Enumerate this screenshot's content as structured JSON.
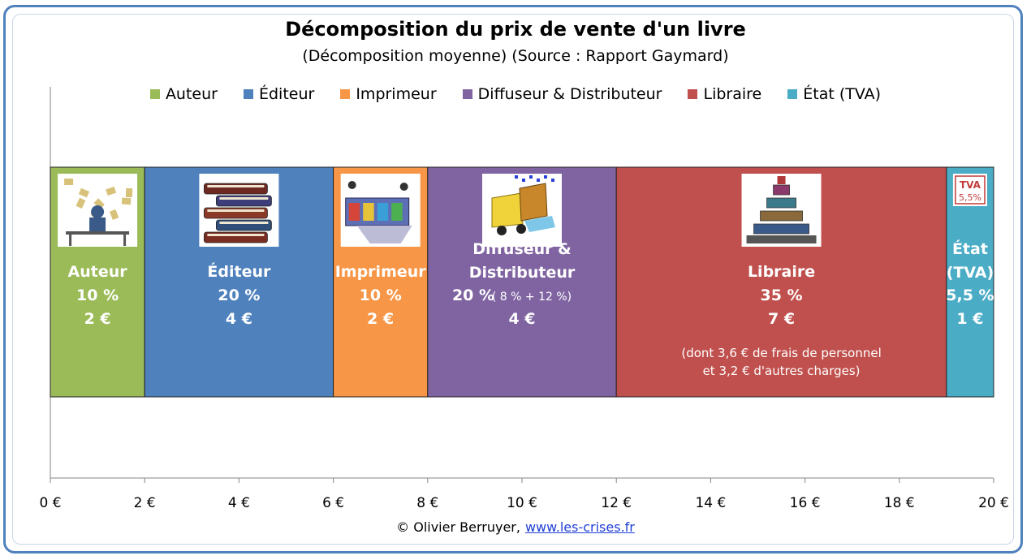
{
  "chart_data": {
    "type": "bar",
    "orientation": "horizontal-stacked",
    "title": "Décomposition du prix de vente d'un livre",
    "subtitle": "(Décomposition moyenne) (Source : Rapport Gaymard)",
    "legend_position": "top",
    "xlim": [
      0,
      20
    ],
    "x_ticks": [
      "0 €",
      "2 €",
      "4 €",
      "6 €",
      "8 €",
      "10 €",
      "12 €",
      "14 €",
      "16 €",
      "18 €",
      "20 €"
    ],
    "x_tick_values": [
      0,
      2,
      4,
      6,
      8,
      10,
      12,
      14,
      16,
      18,
      20
    ],
    "grid": "vertical gridlines at each tick",
    "series": [
      {
        "name": "Auteur",
        "value": 2,
        "color": "#9bbb59",
        "lines": [
          "Auteur"
        ],
        "percent": "10 %",
        "euro": "2 €",
        "icon": "writer-at-desk-icon"
      },
      {
        "name": "Éditeur",
        "value": 4,
        "color": "#4f81bd",
        "lines": [
          "Éditeur"
        ],
        "percent": "20 %",
        "euro": "4 €",
        "icon": "stack-of-books-icon"
      },
      {
        "name": "Imprimeur",
        "value": 2,
        "color": "#f79646",
        "lines": [
          "Imprimeur"
        ],
        "percent": "10 %",
        "euro": "2 €",
        "icon": "printing-press-icon"
      },
      {
        "name": "Diffuseur & Distributeur",
        "value": 4,
        "color": "#8064a2",
        "lines": [
          "Diffuseur &",
          "Distributeur"
        ],
        "percent": "20 %",
        "percent_detail": "( 8 % + 12 %)",
        "euro": "4 €",
        "icon": "delivery-truck-icon"
      },
      {
        "name": "Libraire",
        "value": 7,
        "color": "#c0504d",
        "lines": [
          "Libraire"
        ],
        "percent": "35 %",
        "euro": "7 €",
        "note": [
          "(dont  3,6 € de frais de personnel",
          "et 3,2 € d'autres charges)"
        ],
        "icon": "bookshop-display-icon"
      },
      {
        "name": "État (TVA)",
        "legend_name": "État (TVA)",
        "value": 1,
        "color": "#4bacc6",
        "lines": [
          "État",
          "(TVA)"
        ],
        "percent": "5,5 %",
        "euro": "1 €",
        "icon": "tva-stamp-icon"
      }
    ]
  },
  "tva_stamp_text": [
    "TVA",
    "5,5%"
  ],
  "credit": {
    "text": "© Olivier Berruyer,",
    "link": "www.les-crises.fr"
  }
}
